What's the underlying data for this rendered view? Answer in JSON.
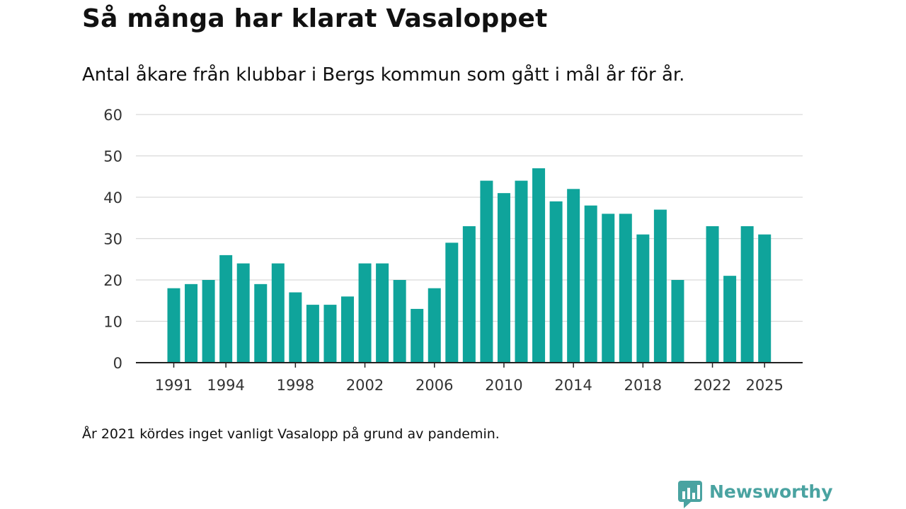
{
  "header": {
    "title": "Så många har klarat Vasaloppet",
    "subtitle": "Antal åkare från klubbar i Bergs kommun som gått i mål år för år."
  },
  "footer": {
    "note": "År 2021 kördes inget vanligt Vasalopp på grund av pandemin.",
    "brand": "Newsworthy"
  },
  "colors": {
    "bar": "#0fa49b",
    "grid": "#d9d9d9",
    "axis": "#222222",
    "brand": "#4aa3a1"
  },
  "chart_data": {
    "type": "bar",
    "title": "Så många har klarat Vasaloppet",
    "xlabel": "",
    "ylabel": "",
    "ylim": [
      0,
      60
    ],
    "yticks": [
      0,
      10,
      20,
      30,
      40,
      50,
      60
    ],
    "xtick_labels": [
      "1991",
      "1994",
      "1998",
      "2002",
      "2006",
      "2010",
      "2014",
      "2018",
      "2022",
      "2025"
    ],
    "grid": true,
    "categories": [
      "1991",
      "1992",
      "1993",
      "1994",
      "1995",
      "1996",
      "1997",
      "1998",
      "1999",
      "2000",
      "2001",
      "2002",
      "2003",
      "2004",
      "2005",
      "2006",
      "2007",
      "2008",
      "2009",
      "2010",
      "2011",
      "2012",
      "2013",
      "2014",
      "2015",
      "2016",
      "2017",
      "2018",
      "2019",
      "2020",
      "2021",
      "2022",
      "2023",
      "2024",
      "2025"
    ],
    "values": [
      18,
      19,
      20,
      26,
      24,
      19,
      24,
      17,
      14,
      14,
      16,
      24,
      24,
      20,
      13,
      18,
      29,
      33,
      44,
      41,
      44,
      47,
      39,
      42,
      38,
      36,
      36,
      31,
      37,
      20,
      null,
      33,
      21,
      33,
      31
    ]
  }
}
